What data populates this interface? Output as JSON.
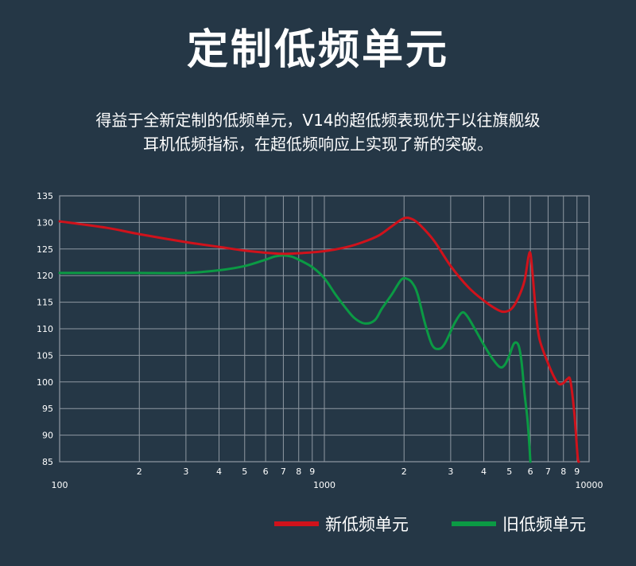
{
  "title": "定制低频单元",
  "description": {
    "line1": "得益于全新定制的低频单元，V14的超低频表现优于以往旗舰级",
    "line2": "耳机低频指标，在超低频响应上实现了新的突破。"
  },
  "chart_data": {
    "type": "line",
    "x_scale": "log",
    "xlim": [
      100,
      10000
    ],
    "ylim": [
      85,
      135
    ],
    "y_ticks": [
      135,
      130,
      125,
      120,
      115,
      110,
      105,
      100,
      95,
      90,
      85
    ],
    "x_tick_labels": [
      {
        "value": 100,
        "label": "100"
      },
      {
        "value": 200,
        "label": "2"
      },
      {
        "value": 300,
        "label": "3"
      },
      {
        "value": 400,
        "label": "4"
      },
      {
        "value": 500,
        "label": "5"
      },
      {
        "value": 600,
        "label": "6"
      },
      {
        "value": 700,
        "label": "7"
      },
      {
        "value": 800,
        "label": "8"
      },
      {
        "value": 900,
        "label": "9"
      },
      {
        "value": 1000,
        "label": "1000"
      },
      {
        "value": 2000,
        "label": "2"
      },
      {
        "value": 3000,
        "label": "3"
      },
      {
        "value": 4000,
        "label": "4"
      },
      {
        "value": 5000,
        "label": "5"
      },
      {
        "value": 6000,
        "label": "6"
      },
      {
        "value": 7000,
        "label": "7"
      },
      {
        "value": 8000,
        "label": "8"
      },
      {
        "value": 9000,
        "label": "9"
      },
      {
        "value": 10000,
        "label": "10000"
      }
    ],
    "grid": true,
    "legend_position": "bottom-right",
    "series": [
      {
        "name": "新低频单元",
        "color": "#d0121b",
        "points": [
          [
            100,
            130.2
          ],
          [
            150,
            129.0
          ],
          [
            200,
            127.8
          ],
          [
            300,
            126.3
          ],
          [
            400,
            125.4
          ],
          [
            500,
            124.7
          ],
          [
            600,
            124.3
          ],
          [
            700,
            124.1
          ],
          [
            800,
            124.2
          ],
          [
            1000,
            124.6
          ],
          [
            1200,
            125.3
          ],
          [
            1400,
            126.3
          ],
          [
            1600,
            127.5
          ],
          [
            1800,
            129.3
          ],
          [
            2000,
            130.8
          ],
          [
            2150,
            130.6
          ],
          [
            2300,
            129.5
          ],
          [
            2600,
            126.5
          ],
          [
            3000,
            121.8
          ],
          [
            3500,
            117.8
          ],
          [
            4000,
            115.3
          ],
          [
            4500,
            113.6
          ],
          [
            4800,
            113.2
          ],
          [
            5100,
            113.8
          ],
          [
            5400,
            115.8
          ],
          [
            5700,
            119.0
          ],
          [
            5900,
            123.5
          ],
          [
            6000,
            124.2
          ],
          [
            6100,
            121.0
          ],
          [
            6300,
            113.0
          ],
          [
            6500,
            108.0
          ],
          [
            7000,
            103.5
          ],
          [
            7400,
            100.8
          ],
          [
            7700,
            99.6
          ],
          [
            8000,
            99.8
          ],
          [
            8300,
            100.6
          ],
          [
            8500,
            100.2
          ],
          [
            8800,
            94.0
          ],
          [
            9050,
            86.0
          ],
          [
            9150,
            85.0
          ]
        ]
      },
      {
        "name": "旧低频单元",
        "color": "#0b9a44",
        "points": [
          [
            100,
            120.5
          ],
          [
            150,
            120.5
          ],
          [
            200,
            120.5
          ],
          [
            300,
            120.5
          ],
          [
            400,
            121.0
          ],
          [
            500,
            121.8
          ],
          [
            600,
            123.0
          ],
          [
            650,
            123.6
          ],
          [
            700,
            123.8
          ],
          [
            750,
            123.6
          ],
          [
            800,
            123.0
          ],
          [
            900,
            121.6
          ],
          [
            1000,
            119.5
          ],
          [
            1100,
            116.5
          ],
          [
            1200,
            114.0
          ],
          [
            1300,
            112.0
          ],
          [
            1420,
            111.0
          ],
          [
            1550,
            111.6
          ],
          [
            1650,
            113.8
          ],
          [
            1800,
            116.5
          ],
          [
            1950,
            119.2
          ],
          [
            2050,
            119.4
          ],
          [
            2150,
            118.6
          ],
          [
            2250,
            116.5
          ],
          [
            2400,
            111.0
          ],
          [
            2550,
            107.0
          ],
          [
            2700,
            106.2
          ],
          [
            2850,
            107.2
          ],
          [
            3100,
            111.0
          ],
          [
            3300,
            113.0
          ],
          [
            3450,
            112.5
          ],
          [
            3700,
            110.0
          ],
          [
            4000,
            107.0
          ],
          [
            4300,
            104.5
          ],
          [
            4600,
            102.8
          ],
          [
            4800,
            103.2
          ],
          [
            5000,
            105.0
          ],
          [
            5200,
            107.2
          ],
          [
            5400,
            107.0
          ],
          [
            5550,
            104.0
          ],
          [
            5700,
            98.0
          ],
          [
            5850,
            93.0
          ],
          [
            5950,
            88.0
          ],
          [
            6000,
            85.0
          ]
        ]
      }
    ]
  },
  "legend": {
    "items": [
      {
        "label": "新低频单元",
        "color": "#d0121b"
      },
      {
        "label": "旧低频单元",
        "color": "#0b9a44"
      }
    ]
  }
}
